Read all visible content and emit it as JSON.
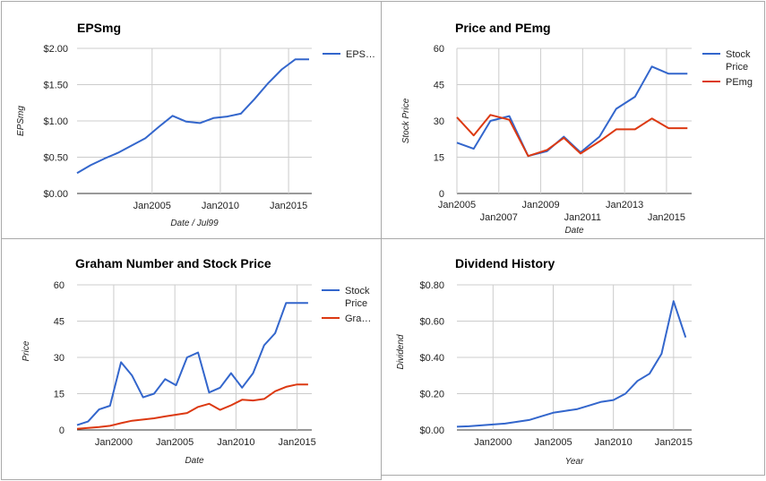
{
  "chart_data": [
    {
      "type": "line",
      "title": "EPSmg",
      "xlabel": "Date / Jul99",
      "ylabel": "EPSmg",
      "xlim": [
        1999.5,
        2016.7
      ],
      "ylim": [
        0,
        2
      ],
      "yticks": [
        0,
        0.5,
        1,
        1.5,
        2
      ],
      "ytick_labels": [
        "$0.00",
        "$0.50",
        "$1.00",
        "$1.50",
        "$2.00"
      ],
      "xticks": [
        2005,
        2010,
        2015
      ],
      "xtick_labels": [
        "Jan2005",
        "Jan2010",
        "Jan2015"
      ],
      "grid": true,
      "legend_position": "right",
      "series": [
        {
          "name": "EPS…",
          "color": "#3366cc",
          "x": [
            1999.5,
            2000.5,
            2001.5,
            2002.5,
            2003.5,
            2004.5,
            2005.5,
            2006.5,
            2007.5,
            2008.5,
            2009.5,
            2010.5,
            2011.5,
            2012.5,
            2013.5,
            2014.5,
            2015.5,
            2016.5
          ],
          "y": [
            0.28,
            0.39,
            0.48,
            0.56,
            0.66,
            0.76,
            0.92,
            1.07,
            0.99,
            0.97,
            1.04,
            1.06,
            1.1,
            1.3,
            1.52,
            1.71,
            1.85,
            1.85
          ]
        }
      ]
    },
    {
      "type": "line",
      "title": "Price and PEmg",
      "xlabel": "Date",
      "ylabel": "Stock Price",
      "xlim": [
        2005,
        2016.2
      ],
      "ylim": [
        0,
        60
      ],
      "yticks": [
        0,
        15,
        30,
        45,
        60
      ],
      "ytick_labels": [
        "0",
        "15",
        "30",
        "45",
        "60"
      ],
      "xticks": [
        2005,
        2007,
        2009,
        2011,
        2013,
        2015
      ],
      "xtick_labels": [
        "Jan2005",
        "Jan2007",
        "Jan2009",
        "Jan2011",
        "Jan2013",
        "Jan2015"
      ],
      "grid": true,
      "legend_position": "right",
      "series": [
        {
          "name": "Stock Price",
          "color": "#3366cc",
          "x": [
            2005,
            2005.8,
            2006.6,
            2007.5,
            2008.4,
            2009.3,
            2010.1,
            2010.9,
            2011.8,
            2012.6,
            2013.5,
            2014.3,
            2015.1,
            2016
          ],
          "y": [
            21,
            18.5,
            30,
            32,
            15.5,
            17.5,
            23.5,
            17,
            23.5,
            35,
            40,
            52.5,
            49.5,
            49.5
          ]
        },
        {
          "name": "PEmg",
          "color": "#dc3912",
          "x": [
            2005,
            2005.8,
            2006.6,
            2007.5,
            2008.4,
            2009.3,
            2010.1,
            2010.9,
            2011.8,
            2012.6,
            2013.5,
            2014.3,
            2015.1,
            2016
          ],
          "y": [
            31.5,
            24,
            32.5,
            30.5,
            15.5,
            18,
            23,
            16.5,
            21.5,
            26.5,
            26.5,
            31,
            27,
            27
          ]
        }
      ]
    },
    {
      "type": "line",
      "title": "Graham Number and Stock Price",
      "xlabel": "Date",
      "ylabel": "Price",
      "xlim": [
        1997,
        2016.2
      ],
      "ylim": [
        0,
        60
      ],
      "yticks": [
        0,
        15,
        30,
        45,
        60
      ],
      "ytick_labels": [
        "0",
        "15",
        "30",
        "45",
        "60"
      ],
      "xticks": [
        2000,
        2005,
        2010,
        2015
      ],
      "xtick_labels": [
        "Jan2000",
        "Jan2005",
        "Jan2010",
        "Jan2015"
      ],
      "grid": true,
      "legend_position": "right",
      "series": [
        {
          "name": "Stock Price",
          "color": "#3366cc",
          "x": [
            1997,
            1997.9,
            1998.8,
            1999.7,
            2000.6,
            2001.5,
            2002.4,
            2003.3,
            2004.2,
            2005.1,
            2006,
            2006.9,
            2007.8,
            2008.7,
            2009.6,
            2010.5,
            2011.4,
            2012.3,
            2013.2,
            2014.1,
            2015,
            2015.9
          ],
          "y": [
            2,
            3.5,
            8.5,
            10,
            28,
            22.5,
            13.5,
            15,
            21,
            18.5,
            30,
            32,
            15.5,
            17.5,
            23.5,
            17.5,
            23.5,
            35,
            40,
            52.5,
            52.5,
            52.5
          ]
        },
        {
          "name": "Gra…",
          "color": "#dc3912",
          "x": [
            1997,
            1997.9,
            1998.8,
            1999.7,
            2000.6,
            2001.5,
            2002.4,
            2003.3,
            2004.2,
            2005.1,
            2006,
            2006.9,
            2007.8,
            2008.7,
            2009.6,
            2010.5,
            2011.4,
            2012.3,
            2013.2,
            2014.1,
            2015,
            2015.9
          ],
          "y": [
            0.5,
            0.8,
            1.2,
            1.7,
            2.8,
            3.8,
            4.3,
            4.8,
            5.6,
            6.3,
            7,
            9.5,
            10.8,
            8.3,
            10.2,
            12.5,
            12.2,
            12.8,
            16,
            17.8,
            18.8,
            18.8
          ]
        }
      ]
    },
    {
      "type": "line",
      "title": "Dividend History",
      "xlabel": "Year",
      "ylabel": "Dividend",
      "xlim": [
        1997,
        2016.5
      ],
      "ylim": [
        0,
        0.8
      ],
      "yticks": [
        0,
        0.2,
        0.4,
        0.6,
        0.8
      ],
      "ytick_labels": [
        "$0.00",
        "$0.20",
        "$0.40",
        "$0.60",
        "$0.80"
      ],
      "xticks": [
        2000,
        2005,
        2010,
        2015
      ],
      "xtick_labels": [
        "Jan2000",
        "Jan2005",
        "Jan2010",
        "Jan2015"
      ],
      "grid": true,
      "legend_position": "none",
      "series": [
        {
          "name": "",
          "color": "#3366cc",
          "x": [
            1997,
            1998,
            1999,
            2000,
            2001,
            2002,
            2003,
            2004,
            2005,
            2006,
            2007,
            2008,
            2009,
            2010,
            2011,
            2012,
            2013,
            2014,
            2015,
            2016
          ],
          "y": [
            0.018,
            0.02,
            0.025,
            0.03,
            0.035,
            0.045,
            0.055,
            0.075,
            0.095,
            0.105,
            0.115,
            0.135,
            0.155,
            0.165,
            0.2,
            0.27,
            0.31,
            0.42,
            0.71,
            0.51
          ]
        }
      ]
    }
  ]
}
